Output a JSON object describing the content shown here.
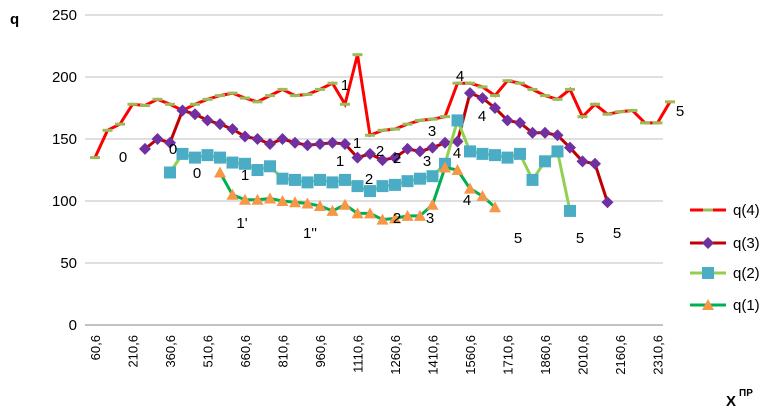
{
  "chart_data": {
    "type": "line",
    "y_label": "q",
    "x_label": "X",
    "x_label_sup": "ПР",
    "categories": [
      "60,6",
      null,
      null,
      "210,6",
      null,
      null,
      "360,6",
      null,
      null,
      "510,6",
      null,
      null,
      "660,6",
      null,
      null,
      "810,6",
      null,
      null,
      "960,6",
      null,
      null,
      "1110,6",
      null,
      null,
      "1260,6",
      null,
      null,
      "1410,6",
      null,
      null,
      "1560,6",
      null,
      null,
      "1710,6",
      null,
      null,
      "1860,6",
      null,
      null,
      "2010,6",
      null,
      null,
      "2160,6",
      null,
      null,
      "2310,6",
      null
    ],
    "ylim": [
      0,
      250
    ],
    "yticks": [
      0,
      50,
      100,
      150,
      200,
      250
    ],
    "grid": true,
    "series": [
      {
        "name": "q(4)",
        "color": "#ff0000",
        "marker_color": "#9bbb59",
        "marker": "dash",
        "values": [
          135,
          157,
          162,
          178,
          177,
          182,
          178,
          173,
          178,
          182,
          185,
          187,
          183,
          180,
          185,
          190,
          185,
          186,
          190,
          195,
          178,
          218,
          153,
          157,
          158,
          162,
          165,
          166,
          168,
          195,
          195,
          192,
          185,
          197,
          195,
          190,
          185,
          182,
          190,
          168,
          178,
          170,
          172,
          173,
          163,
          163,
          180
        ]
      },
      {
        "name": "q(3)",
        "color": "#c00000",
        "marker_color": "#7030a0",
        "marker": "diamond",
        "values": [
          null,
          null,
          null,
          null,
          142,
          150,
          147,
          173,
          170,
          165,
          162,
          158,
          152,
          150,
          146,
          150,
          147,
          145,
          146,
          147,
          146,
          135,
          138,
          133,
          135,
          142,
          140,
          143,
          147,
          148,
          187,
          183,
          175,
          165,
          163,
          155,
          155,
          153,
          143,
          132,
          130,
          99,
          null,
          null,
          null,
          null,
          null
        ]
      },
      {
        "name": "q(2)",
        "color": "#92d050",
        "marker_color": "#4bacc6",
        "marker": "square",
        "values": [
          null,
          null,
          null,
          null,
          null,
          null,
          123,
          138,
          135,
          137,
          135,
          131,
          130,
          125,
          128,
          118,
          117,
          115,
          117,
          115,
          117,
          112,
          108,
          112,
          113,
          116,
          118,
          120,
          130,
          165,
          140,
          138,
          137,
          135,
          138,
          117,
          132,
          140,
          92,
          null,
          null,
          null,
          null,
          null,
          null,
          null,
          null
        ]
      },
      {
        "name": "q(1)",
        "color": "#00b050",
        "marker_color": "#f79646",
        "marker": "triangle",
        "values": [
          null,
          null,
          null,
          null,
          null,
          null,
          null,
          null,
          null,
          null,
          123,
          105,
          101,
          101,
          102,
          100,
          99,
          98,
          96,
          92,
          97,
          90,
          90,
          85,
          86,
          88,
          88,
          97,
          127,
          125,
          110,
          104,
          95,
          null,
          null,
          null,
          null,
          null,
          null,
          null,
          null,
          null,
          null,
          null,
          null,
          null,
          null
        ]
      }
    ],
    "annotations": [
      "0",
      "0",
      "0",
      "1",
      "1'",
      "1''",
      "1",
      "1",
      "1",
      "2",
      "2",
      "2",
      "2",
      "3",
      "3",
      "3",
      "4",
      "4",
      "4",
      "4",
      "5",
      "5",
      "5",
      "5"
    ]
  }
}
